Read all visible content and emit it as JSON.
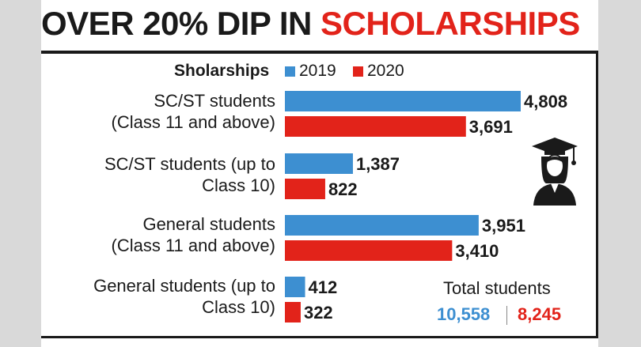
{
  "title": {
    "part1": "OVER 20% DIP IN",
    "part2": "SCHOLARSHIPS"
  },
  "legend": {
    "title": "Sholarships",
    "items": [
      "2019",
      "2020"
    ]
  },
  "colors": {
    "2019": "#3d8fd1",
    "2020": "#e2231a",
    "text": "#1a1a1a"
  },
  "categories": [
    {
      "line1": "SC/ST students",
      "line2": "(Class 11 and above)"
    },
    {
      "line1": "SC/ST students (up to",
      "line2": "Class 10)"
    },
    {
      "line1": "General students",
      "line2": "(Class 11 and above)"
    },
    {
      "line1": "General students (up to",
      "line2": "Class 10)"
    }
  ],
  "totals": {
    "label": "Total students",
    "value_2019": "10,558",
    "value_2020": "8,245"
  },
  "icon": "graduate-icon",
  "chart_data": {
    "type": "bar",
    "orientation": "horizontal",
    "title": "OVER 20% DIP IN SCHOLARSHIPS",
    "categories": [
      "SC/ST students (Class 11 and above)",
      "SC/ST students (up to Class 10)",
      "General students (Class 11 and above)",
      "General students (up to Class 10)"
    ],
    "series": [
      {
        "name": "2019",
        "values": [
          4808,
          1387,
          3951,
          412
        ],
        "labels": [
          "4,808",
          "1,387",
          "3,951",
          "412"
        ]
      },
      {
        "name": "2020",
        "values": [
          3691,
          822,
          3410,
          322
        ],
        "labels": [
          "3,691",
          "822",
          "3,410",
          "322"
        ]
      }
    ],
    "xlim": [
      0,
      4808
    ],
    "grid": false,
    "legend": "top"
  }
}
